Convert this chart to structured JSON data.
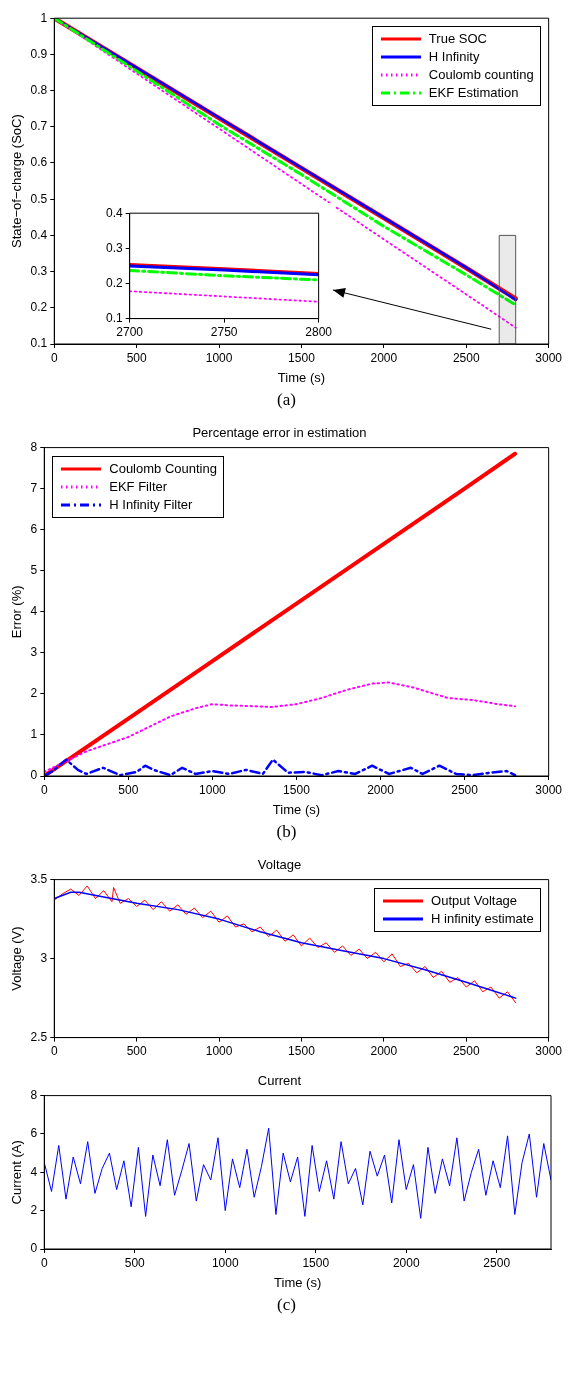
{
  "chart_data": [
    {
      "type": "line",
      "xlabel": "Time (s)",
      "ylabel": "State−of−charge (SoC)",
      "xlim": [
        0,
        3000
      ],
      "xticks": [
        0,
        500,
        1000,
        1500,
        2000,
        2500,
        3000
      ],
      "ylim": [
        0.1,
        1
      ],
      "yticks": [
        0.1,
        0.2,
        0.3,
        0.4,
        0.5,
        0.6,
        0.7,
        0.8,
        0.9,
        1
      ],
      "legend": "top right",
      "annotations": [
        "(a)"
      ],
      "bands": [
        {
          "axis": "x",
          "from": 2700,
          "to": 2800,
          "color": "#555555"
        }
      ],
      "x": [
        0,
        500,
        1000,
        1500,
        2000,
        2500,
        2800
      ],
      "series": [
        {
          "name": "True SOC",
          "color": "#ff0000",
          "line_style": "solid",
          "values": [
            1,
            0.862,
            0.724,
            0.586,
            0.448,
            0.31,
            0.225
          ]
        },
        {
          "name": "H Infinity",
          "color": "#0000ff",
          "line_style": "solid",
          "values": [
            1,
            0.863,
            0.725,
            0.587,
            0.449,
            0.311,
            0.222
          ]
        },
        {
          "name": "Coulomb counting",
          "color": "#ff00ff",
          "line_style": "dotted",
          "values": [
            1,
            0.847,
            0.695,
            0.542,
            0.389,
            0.237,
            0.145
          ]
        },
        {
          "name": "EKF Estimation",
          "color": "#00ff00",
          "line_style": "dashed",
          "values": [
            1,
            0.854,
            0.706,
            0.568,
            0.425,
            0.291,
            0.208
          ]
        }
      ]
    },
    {
      "type": "line",
      "xlim": [
        2700,
        2800
      ],
      "xticks": [
        2700,
        2750,
        2800
      ],
      "ylim": [
        0.1,
        0.4
      ],
      "yticks": [
        0.1,
        0.2,
        0.3,
        0.4
      ],
      "x": [
        2700,
        2750,
        2800
      ],
      "series": [
        {
          "color": "#ff0000",
          "line_style": "solid",
          "values": [
            0.253,
            0.241,
            0.228
          ]
        },
        {
          "color": "#0000ff",
          "line_style": "solid",
          "values": [
            0.25,
            0.238,
            0.225
          ]
        },
        {
          "color": "#ff00ff",
          "line_style": "dotted",
          "values": [
            0.178,
            0.163,
            0.148
          ]
        },
        {
          "color": "#00ff00",
          "line_style": "dashed",
          "values": [
            0.237,
            0.222,
            0.21
          ]
        }
      ]
    },
    {
      "type": "line",
      "title": "Percentage error in estimation",
      "xlabel": "Time (s)",
      "ylabel": "Error (%)",
      "xlim": [
        0,
        3000
      ],
      "xticks": [
        0,
        500,
        1000,
        1500,
        2000,
        2500,
        3000
      ],
      "ylim": [
        0,
        8
      ],
      "yticks": [
        0,
        1,
        2,
        3,
        4,
        5,
        6,
        7,
        8
      ],
      "legend": "top left",
      "annotations": [
        "(b)"
      ],
      "series": [
        {
          "name": "Coulomb Counting",
          "color": "#ff0000",
          "line_style": "solid",
          "x": [
            0,
            500,
            1000,
            1500,
            2000,
            2500,
            2800
          ],
          "values": [
            0,
            1.4,
            2.8,
            4.2,
            5.6,
            7.0,
            7.85
          ]
        },
        {
          "name": "EKF Filter",
          "color": "#ff00ff",
          "line_style": "dotted",
          "x": [
            0,
            100,
            250,
            500,
            750,
            900,
            1000,
            1100,
            1250,
            1350,
            1500,
            1650,
            1800,
            1950,
            2050,
            2200,
            2400,
            2550,
            2700,
            2800
          ],
          "values": [
            0.1,
            0.3,
            0.6,
            0.95,
            1.45,
            1.65,
            1.75,
            1.72,
            1.7,
            1.68,
            1.75,
            1.9,
            2.1,
            2.25,
            2.28,
            2.15,
            1.9,
            1.85,
            1.75,
            1.7
          ]
        },
        {
          "name": "H Infinity Filter",
          "color": "#0000ff",
          "line_style": "dashed",
          "x": [
            0,
            60,
            130,
            200,
            250,
            350,
            450,
            550,
            600,
            650,
            750,
            820,
            900,
            1000,
            1100,
            1200,
            1300,
            1360,
            1450,
            1550,
            1650,
            1750,
            1850,
            1950,
            2050,
            2180,
            2250,
            2350,
            2450,
            2550,
            2650,
            2750,
            2800
          ],
          "values": [
            0,
            0.15,
            0.4,
            0.15,
            0.05,
            0.2,
            0.02,
            0.1,
            0.25,
            0.15,
            0.02,
            0.2,
            0.05,
            0.12,
            0.05,
            0.15,
            0.05,
            0.4,
            0.08,
            0.1,
            0.02,
            0.12,
            0.05,
            0.25,
            0.05,
            0.2,
            0.05,
            0.25,
            0.05,
            0.02,
            0.08,
            0.12,
            0.02
          ]
        }
      ]
    },
    {
      "type": "line",
      "title": "Voltage",
      "ylabel": "Voltage (V)",
      "xlim": [
        0,
        3000
      ],
      "xticks": [
        0,
        500,
        1000,
        1500,
        2000,
        2500,
        3000
      ],
      "ylim": [
        2.5,
        3.5
      ],
      "yticks": [
        2.5,
        3,
        3.5
      ],
      "legend": "top right",
      "series": [
        {
          "name": "Output Voltage",
          "color": "#ff0000",
          "line_style": "solid",
          "x": [
            0,
            50,
            100,
            150,
            200,
            250,
            300,
            350,
            360,
            400,
            450,
            500,
            550,
            600,
            650,
            700,
            750,
            800,
            850,
            900,
            950,
            1000,
            1050,
            1100,
            1150,
            1200,
            1250,
            1300,
            1350,
            1400,
            1450,
            1500,
            1550,
            1600,
            1650,
            1700,
            1750,
            1800,
            1850,
            1900,
            1950,
            2000,
            2050,
            2100,
            2150,
            2200,
            2250,
            2300,
            2350,
            2400,
            2450,
            2500,
            2550,
            2600,
            2650,
            2700,
            2750,
            2800
          ],
          "values": [
            3.37,
            3.41,
            3.44,
            3.4,
            3.46,
            3.38,
            3.43,
            3.36,
            3.45,
            3.35,
            3.38,
            3.33,
            3.37,
            3.31,
            3.36,
            3.3,
            3.34,
            3.28,
            3.32,
            3.26,
            3.3,
            3.23,
            3.27,
            3.2,
            3.22,
            3.17,
            3.2,
            3.14,
            3.18,
            3.11,
            3.15,
            3.08,
            3.13,
            3.07,
            3.1,
            3.04,
            3.08,
            3.02,
            3.06,
            3.0,
            3.04,
            2.98,
            3.03,
            2.95,
            2.97,
            2.91,
            2.95,
            2.88,
            2.92,
            2.85,
            2.88,
            2.82,
            2.86,
            2.79,
            2.82,
            2.75,
            2.79,
            2.72
          ]
        },
        {
          "name": "H infinity estimate",
          "color": "#0000ff",
          "line_style": "solid",
          "x": [
            0,
            100,
            150,
            300,
            500,
            750,
            1000,
            1250,
            1500,
            1750,
            2000,
            2250,
            2500,
            2800
          ],
          "values": [
            3.38,
            3.42,
            3.42,
            3.39,
            3.35,
            3.31,
            3.25,
            3.17,
            3.1,
            3.05,
            3.0,
            2.93,
            2.85,
            2.75
          ]
        }
      ]
    },
    {
      "type": "line",
      "title": "Current",
      "xlabel": "Time (s)",
      "ylabel": "Current (A)",
      "xlim": [
        0,
        2800
      ],
      "xticks": [
        0,
        500,
        1000,
        1500,
        2000,
        2500
      ],
      "ylim": [
        0,
        8
      ],
      "yticks": [
        0,
        2,
        4,
        6,
        8
      ],
      "annotations": [
        "(c)"
      ],
      "series": [
        {
          "color": "#0000ff",
          "line_style": "solid",
          "x": [
            0,
            40,
            80,
            120,
            160,
            200,
            240,
            280,
            320,
            360,
            400,
            440,
            480,
            520,
            560,
            600,
            640,
            680,
            720,
            760,
            800,
            840,
            880,
            920,
            960,
            1000,
            1040,
            1080,
            1120,
            1160,
            1200,
            1240,
            1280,
            1320,
            1360,
            1400,
            1440,
            1480,
            1520,
            1560,
            1600,
            1640,
            1680,
            1720,
            1760,
            1800,
            1840,
            1880,
            1920,
            1960,
            2000,
            2040,
            2080,
            2120,
            2160,
            2200,
            2240,
            2280,
            2320,
            2360,
            2400,
            2440,
            2480,
            2520,
            2560,
            2600,
            2640,
            2680,
            2720,
            2760,
            2800
          ],
          "values": [
            4.5,
            3.0,
            5.4,
            2.6,
            4.8,
            3.4,
            5.6,
            2.9,
            4.2,
            5.0,
            3.1,
            4.6,
            2.2,
            5.3,
            1.7,
            4.9,
            3.3,
            5.7,
            2.8,
            4.1,
            5.5,
            2.5,
            4.4,
            3.6,
            5.8,
            2.0,
            4.7,
            3.2,
            5.2,
            2.7,
            4.3,
            6.3,
            1.8,
            5.0,
            3.5,
            4.8,
            1.7,
            5.4,
            3.0,
            4.6,
            2.6,
            5.6,
            3.4,
            4.2,
            2.3,
            5.1,
            3.8,
            4.9,
            2.4,
            5.7,
            3.1,
            4.4,
            1.6,
            5.3,
            2.9,
            4.7,
            3.3,
            5.8,
            2.5,
            4.0,
            5.2,
            2.8,
            4.6,
            3.2,
            5.9,
            1.8,
            4.5,
            6.0,
            2.7,
            5.5,
            3.6
          ]
        }
      ]
    }
  ]
}
